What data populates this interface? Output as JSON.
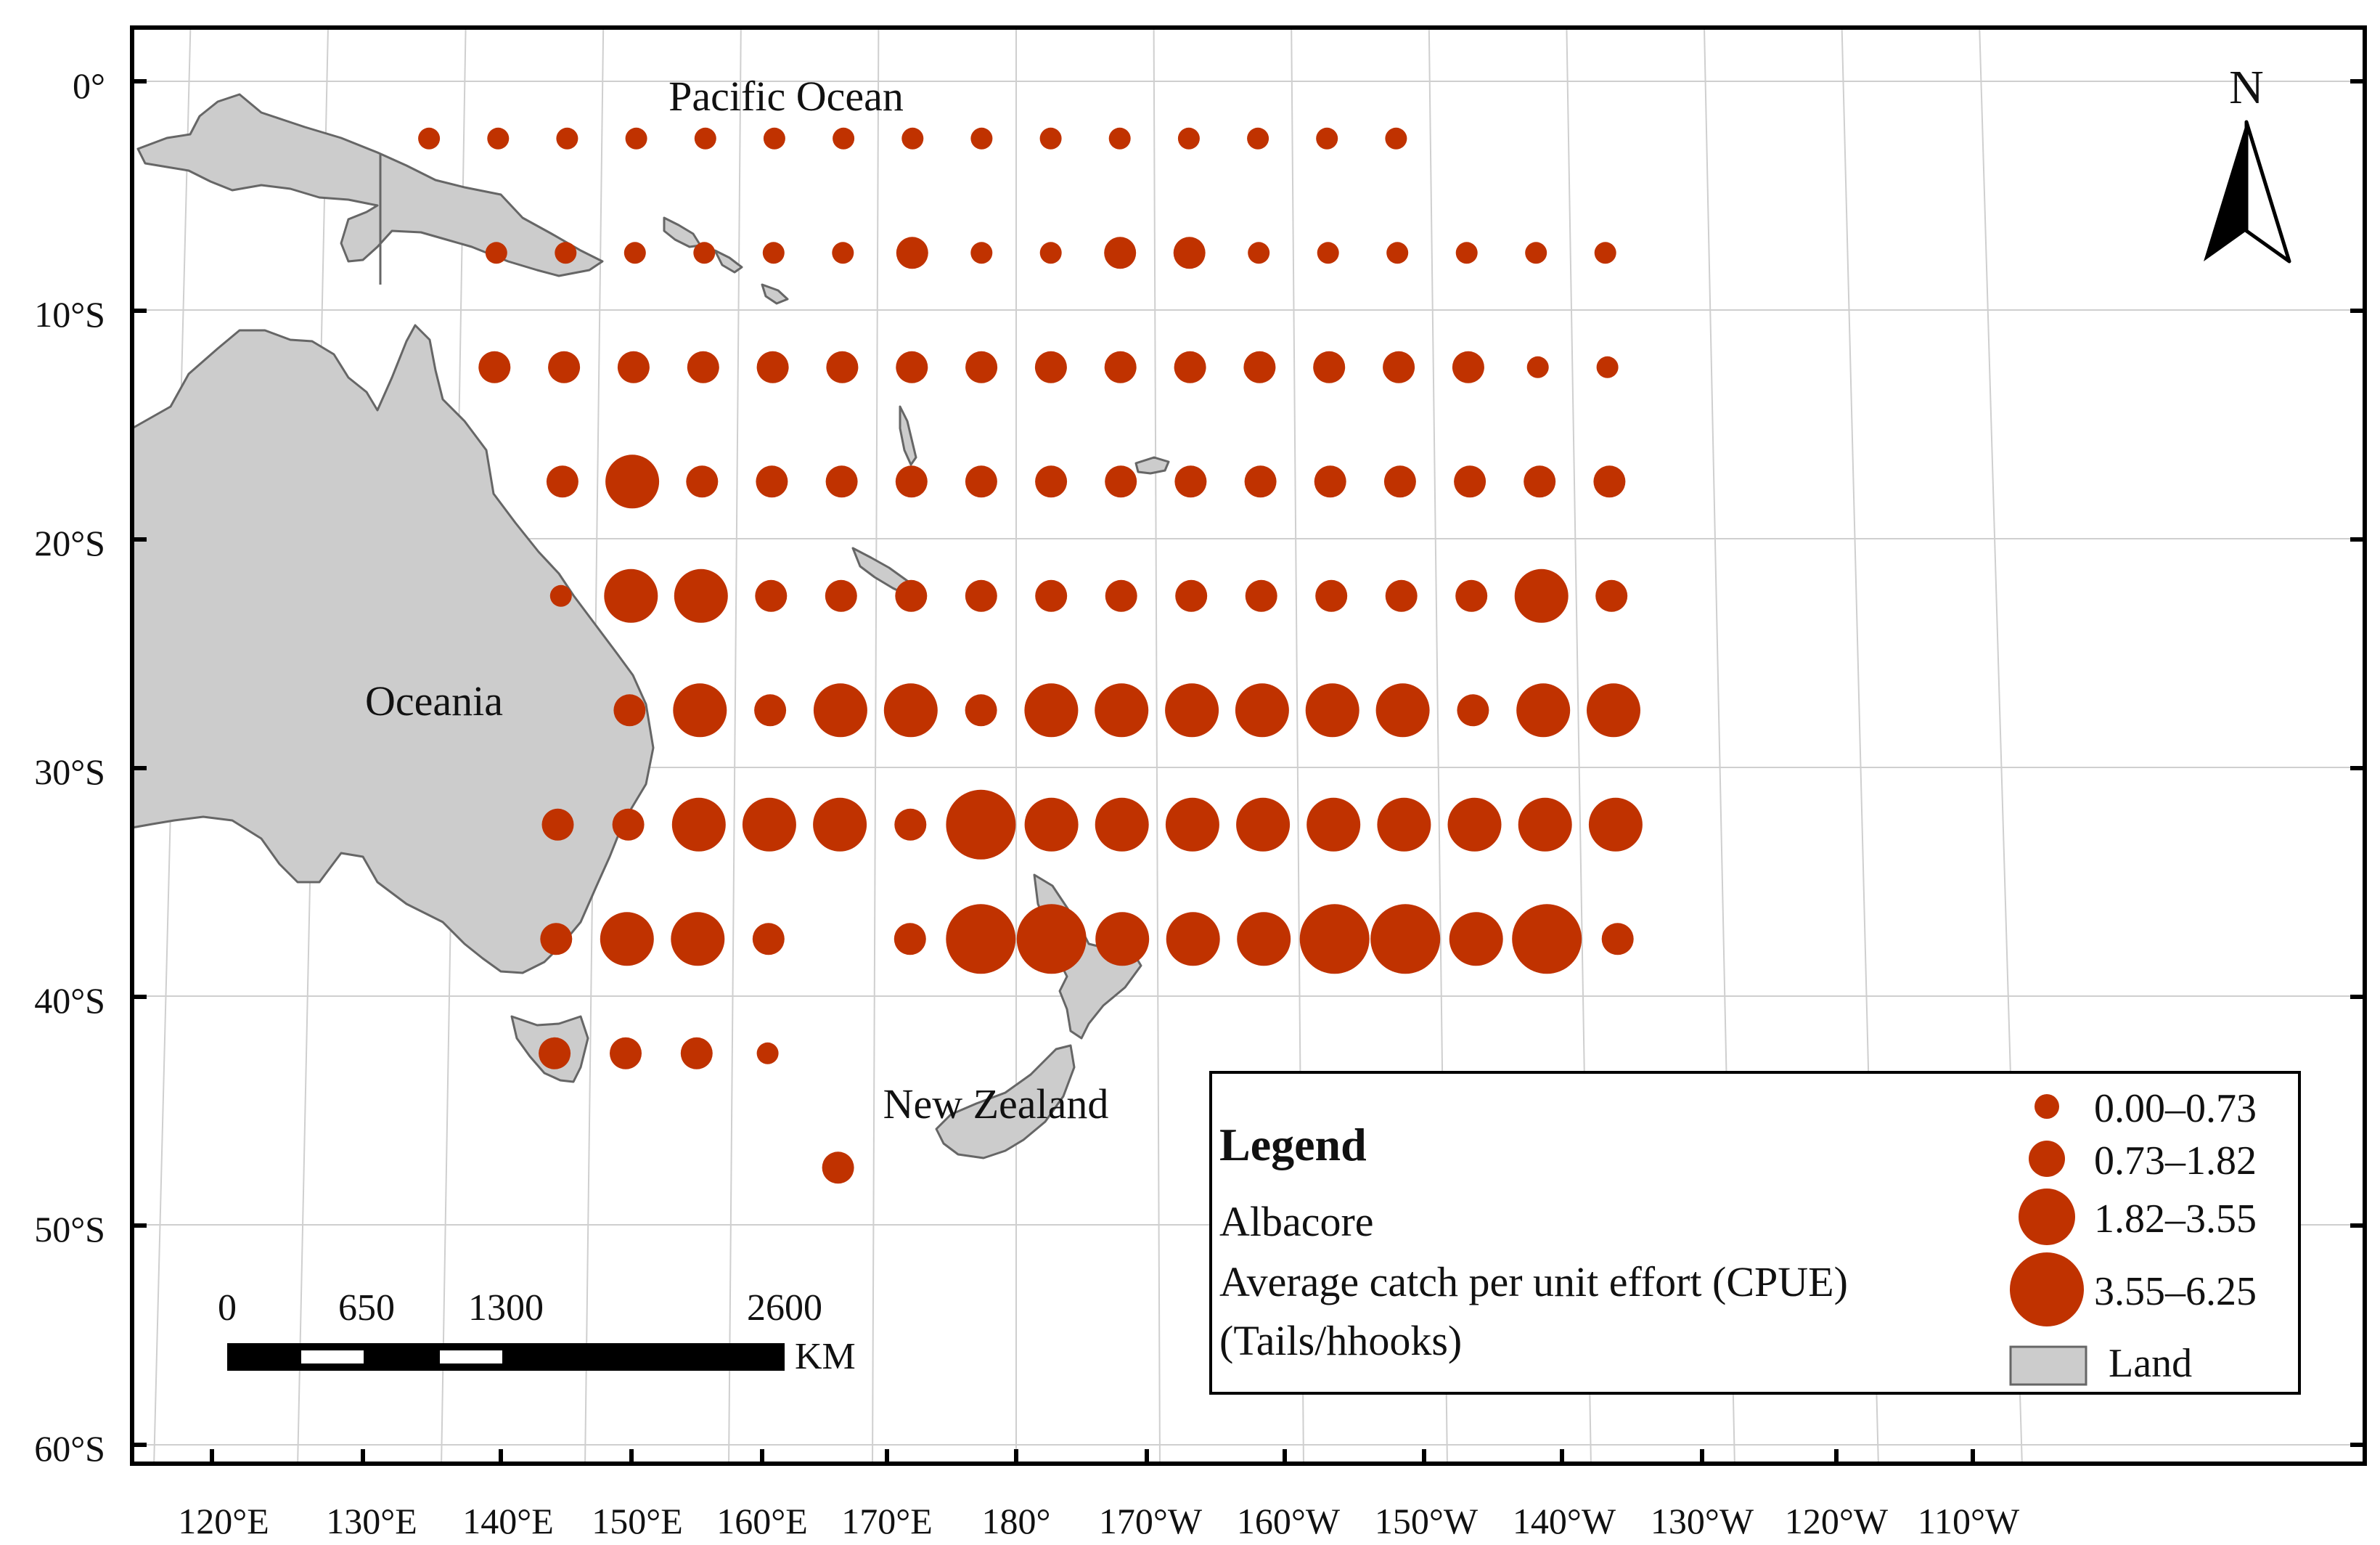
{
  "map": {
    "labels": {
      "pacific": "Pacific Ocean",
      "oceania": "Oceania",
      "nz": "New Zealand"
    },
    "lat_ticks": [
      "0°",
      "10°S",
      "20°S",
      "30°S",
      "40°S",
      "50°S",
      "60°S"
    ],
    "lon_ticks": [
      "120°E",
      "130°E",
      "140°E",
      "150°E",
      "160°E",
      "170°E",
      "180°",
      "170°W",
      "160°W",
      "150°W",
      "140°W",
      "130°W",
      "120°W",
      "110°W"
    ],
    "north_arrow": "N",
    "colors": {
      "dot": "#c03200",
      "land": "#cccccc",
      "coast": "#666666",
      "grid": "#cfcfcf",
      "frame": "#000000"
    }
  },
  "scale_bar": {
    "labels": [
      "0",
      "650",
      "1300",
      "2600"
    ],
    "unit": "KM"
  },
  "legend": {
    "title": "Legend",
    "species": "Albacore",
    "measure": "Average catch per unit effort (CPUE)",
    "units": "(Tails/hhooks)",
    "classes": [
      "0.00–0.73",
      "0.73–1.82",
      "1.82–3.55",
      "3.55–6.25"
    ],
    "land_label": "Land"
  },
  "cpue_grid": {
    "note_classes": "size class 1..4 per legend ranges",
    "rows": [
      {
        "lat": "2.5°S",
        "points": [
          [
            "137.5°E",
            1
          ],
          [
            "142.5°E",
            1
          ],
          [
            "147.5°E",
            1
          ],
          [
            "152.5°E",
            1
          ],
          [
            "157.5°E",
            1
          ],
          [
            "162.5°E",
            1
          ],
          [
            "167.5°E",
            1
          ],
          [
            "172.5°E",
            1
          ],
          [
            "177.5°E",
            1
          ],
          [
            "177.5°W",
            1
          ],
          [
            "172.5°W",
            1
          ],
          [
            "167.5°W",
            1
          ],
          [
            "162.5°W",
            1
          ],
          [
            "157.5°W",
            1
          ],
          [
            "152.5°W",
            1
          ]
        ]
      },
      {
        "lat": "7.5°S",
        "points": [
          [
            "142.5°E",
            1
          ],
          [
            "147.5°E",
            1
          ],
          [
            "152.5°E",
            1
          ],
          [
            "157.5°E",
            1
          ],
          [
            "162.5°E",
            1
          ],
          [
            "167.5°E",
            1
          ],
          [
            "172.5°E",
            2
          ],
          [
            "177.5°E",
            1
          ],
          [
            "177.5°W",
            1
          ],
          [
            "172.5°W",
            2
          ],
          [
            "167.5°W",
            2
          ],
          [
            "162.5°W",
            1
          ],
          [
            "157.5°W",
            1
          ],
          [
            "152.5°W",
            1
          ],
          [
            "147.5°W",
            1
          ],
          [
            "142.5°W",
            1
          ],
          [
            "137.5°W",
            1
          ]
        ]
      },
      {
        "lat": "12.5°S",
        "points": [
          [
            "142.5°E",
            2
          ],
          [
            "147.5°E",
            2
          ],
          [
            "152.5°E",
            2
          ],
          [
            "157.5°E",
            2
          ],
          [
            "162.5°E",
            2
          ],
          [
            "167.5°E",
            2
          ],
          [
            "172.5°E",
            2
          ],
          [
            "177.5°E",
            2
          ],
          [
            "177.5°W",
            2
          ],
          [
            "172.5°W",
            2
          ],
          [
            "167.5°W",
            2
          ],
          [
            "162.5°W",
            2
          ],
          [
            "157.5°W",
            2
          ],
          [
            "152.5°W",
            2
          ],
          [
            "147.5°W",
            2
          ],
          [
            "142.5°W",
            1
          ],
          [
            "137.5°W",
            1
          ]
        ]
      },
      {
        "lat": "17.5°S",
        "points": [
          [
            "147.5°E",
            2
          ],
          [
            "152.5°E",
            3
          ],
          [
            "157.5°E",
            2
          ],
          [
            "162.5°E",
            2
          ],
          [
            "167.5°E",
            2
          ],
          [
            "172.5°E",
            2
          ],
          [
            "177.5°E",
            2
          ],
          [
            "177.5°W",
            2
          ],
          [
            "172.5°W",
            2
          ],
          [
            "167.5°W",
            2
          ],
          [
            "162.5°W",
            2
          ],
          [
            "157.5°W",
            2
          ],
          [
            "152.5°W",
            2
          ],
          [
            "147.5°W",
            2
          ],
          [
            "142.5°W",
            2
          ],
          [
            "137.5°W",
            2
          ]
        ]
      },
      {
        "lat": "22.5°S",
        "points": [
          [
            "147.5°E",
            1
          ],
          [
            "152.5°E",
            3
          ],
          [
            "157.5°E",
            3
          ],
          [
            "162.5°E",
            2
          ],
          [
            "167.5°E",
            2
          ],
          [
            "172.5°E",
            2
          ],
          [
            "177.5°E",
            2
          ],
          [
            "177.5°W",
            2
          ],
          [
            "172.5°W",
            2
          ],
          [
            "167.5°W",
            2
          ],
          [
            "162.5°W",
            2
          ],
          [
            "157.5°W",
            2
          ],
          [
            "152.5°W",
            2
          ],
          [
            "147.5°W",
            2
          ],
          [
            "142.5°W",
            3
          ],
          [
            "137.5°W",
            2
          ]
        ]
      },
      {
        "lat": "27.5°S",
        "points": [
          [
            "152.5°E",
            2
          ],
          [
            "157.5°E",
            3
          ],
          [
            "162.5°E",
            2
          ],
          [
            "167.5°E",
            3
          ],
          [
            "172.5°E",
            3
          ],
          [
            "177.5°E",
            2
          ],
          [
            "177.5°W",
            3
          ],
          [
            "172.5°W",
            3
          ],
          [
            "167.5°W",
            3
          ],
          [
            "162.5°W",
            3
          ],
          [
            "157.5°W",
            3
          ],
          [
            "152.5°W",
            3
          ],
          [
            "147.5°W",
            2
          ],
          [
            "142.5°W",
            3
          ],
          [
            "137.5°W",
            3
          ]
        ]
      },
      {
        "lat": "32.5°S",
        "points": [
          [
            "147.5°E",
            2
          ],
          [
            "152.5°E",
            2
          ],
          [
            "157.5°E",
            3
          ],
          [
            "162.5°E",
            3
          ],
          [
            "167.5°E",
            3
          ],
          [
            "172.5°E",
            2
          ],
          [
            "177.5°E",
            4
          ],
          [
            "177.5°W",
            3
          ],
          [
            "172.5°W",
            3
          ],
          [
            "167.5°W",
            3
          ],
          [
            "162.5°W",
            3
          ],
          [
            "157.5°W",
            3
          ],
          [
            "152.5°W",
            3
          ],
          [
            "147.5°W",
            3
          ],
          [
            "142.5°W",
            3
          ],
          [
            "137.5°W",
            3
          ]
        ]
      },
      {
        "lat": "37.5°S",
        "points": [
          [
            "147.5°E",
            2
          ],
          [
            "152.5°E",
            3
          ],
          [
            "157.5°E",
            3
          ],
          [
            "162.5°E",
            2
          ],
          [
            "172.5°E",
            2
          ],
          [
            "177.5°E",
            4
          ],
          [
            "177.5°W",
            4
          ],
          [
            "172.5°W",
            3
          ],
          [
            "167.5°W",
            3
          ],
          [
            "162.5°W",
            3
          ],
          [
            "157.5°W",
            4
          ],
          [
            "152.5°W",
            4
          ],
          [
            "147.5°W",
            3
          ],
          [
            "142.5°W",
            4
          ],
          [
            "137.5°W",
            2
          ]
        ]
      },
      {
        "lat": "42.5°S",
        "points": [
          [
            "147.5°E",
            2
          ],
          [
            "152.5°E",
            2
          ],
          [
            "157.5°E",
            2
          ],
          [
            "162.5°E",
            1
          ]
        ]
      },
      {
        "lat": "47.5°S",
        "points": [
          [
            "167.5°E",
            2
          ]
        ]
      }
    ]
  }
}
